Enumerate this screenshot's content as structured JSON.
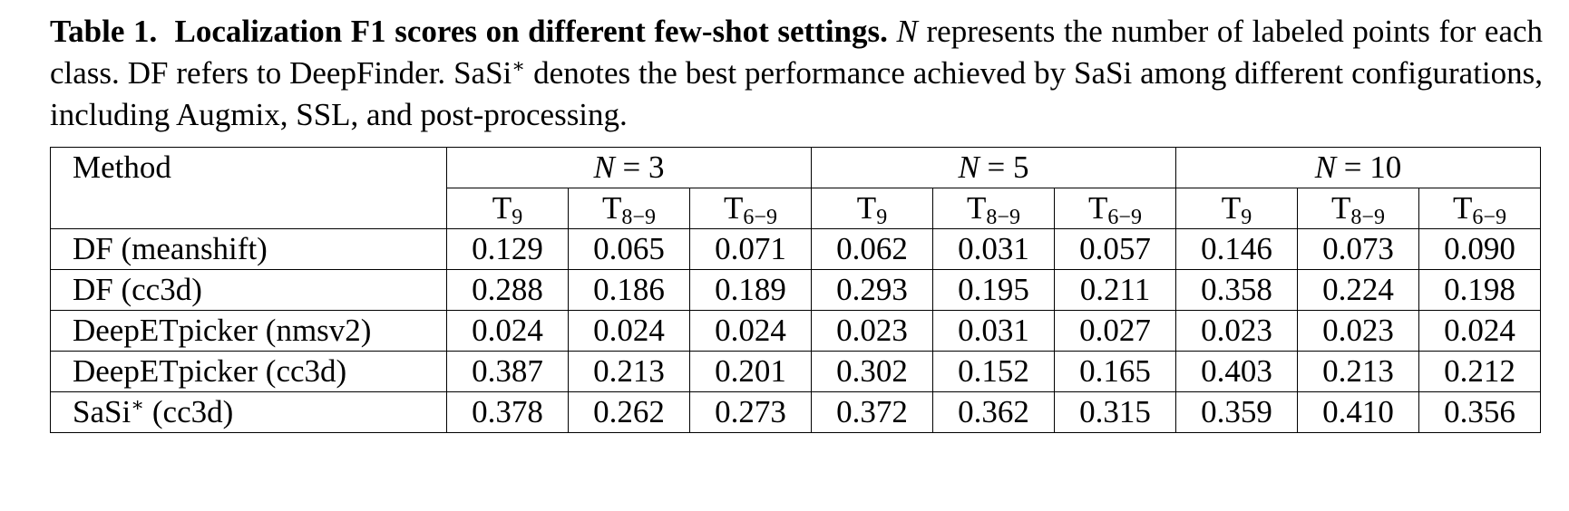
{
  "caption": {
    "label": "Table 1.",
    "title": "Localization F1 scores on different few-shot settings.",
    "var": "N",
    "text1": " represents the number of labeled points for each class. DF refers to DeepFinder. SaSi",
    "sup": "∗",
    "text2": " denotes the best performance achieved by SaSi among different configurations, including Augmix, SSL, and post-processing."
  },
  "table": {
    "method_header": "Method",
    "groups": [
      {
        "var": "N",
        "rest": " = 3",
        "columns": [
          {
            "base": "T",
            "sub": "9"
          },
          {
            "base": "T",
            "sub": "8−9"
          },
          {
            "base": "T",
            "sub": "6−9"
          }
        ]
      },
      {
        "var": "N",
        "rest": " = 5",
        "columns": [
          {
            "base": "T",
            "sub": "9"
          },
          {
            "base": "T",
            "sub": "8−9"
          },
          {
            "base": "T",
            "sub": "6−9"
          }
        ]
      },
      {
        "var": "N",
        "rest": " = 10",
        "columns": [
          {
            "base": "T",
            "sub": "9"
          },
          {
            "base": "T",
            "sub": "8−9"
          },
          {
            "base": "T",
            "sub": "6−9"
          }
        ]
      }
    ],
    "rows": [
      {
        "method": {
          "base": "DF (meanshift)"
        },
        "values": [
          "0.129",
          "0.065",
          "0.071",
          "0.062",
          "0.031",
          "0.057",
          "0.146",
          "0.073",
          "0.090"
        ]
      },
      {
        "method": {
          "base": "DF (cc3d)"
        },
        "values": [
          "0.288",
          "0.186",
          "0.189",
          "0.293",
          "0.195",
          "0.211",
          "0.358",
          "0.224",
          "0.198"
        ]
      },
      {
        "method": {
          "base": "DeepETpicker (nmsv2)"
        },
        "values": [
          "0.024",
          "0.024",
          "0.024",
          "0.023",
          "0.031",
          "0.027",
          "0.023",
          "0.023",
          "0.024"
        ]
      },
      {
        "method": {
          "base": "DeepETpicker (cc3d)"
        },
        "values": [
          "0.387",
          "0.213",
          "0.201",
          "0.302",
          "0.152",
          "0.165",
          "0.403",
          "0.213",
          "0.212"
        ]
      },
      {
        "method": {
          "base": "SaSi",
          "sup": "∗",
          "rest": " (cc3d)"
        },
        "values": [
          "0.378",
          "0.262",
          "0.273",
          "0.372",
          "0.362",
          "0.315",
          "0.359",
          "0.410",
          "0.356"
        ]
      }
    ]
  }
}
